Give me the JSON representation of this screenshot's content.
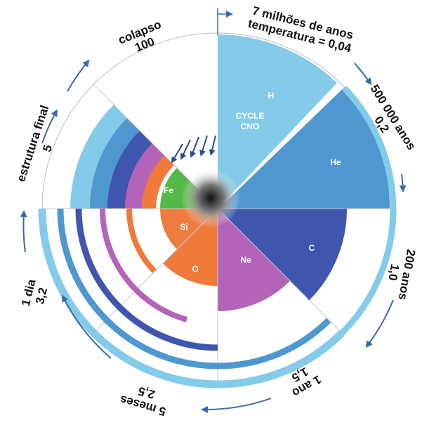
{
  "diagram": {
    "center_text": {
      "line1": "CYCLE",
      "line2": "CNO"
    },
    "elements": {
      "h": "H",
      "he": "He",
      "c": "C",
      "ne": "Ne",
      "o": "O",
      "si": "Si",
      "fe": "Fe"
    },
    "stages": {
      "start_line1": "7 milhões de anos",
      "start_line2": "temperatura = 0,04",
      "helium_time": "500 000 anos",
      "helium_temp": "0,2",
      "carbon_time": "200 anos",
      "carbon_temp": "1,0",
      "neon_time": "1 ano",
      "neon_temp": "1,5",
      "oxygen_time": "5 meses",
      "oxygen_temp": "2,5",
      "silicon_time": "1 dia",
      "silicon_temp": "3,2",
      "final_label": "estrutura final",
      "final_temp": "5",
      "collapse_label": "colapso",
      "collapse_temp": "100"
    },
    "colors": {
      "hydrogen": "#84cbe9",
      "helium": "#4f98cf",
      "carbon": "#4056ae",
      "neon": "#b364b8",
      "oxygen": "#ef7a3a",
      "silicon": "#ee7c3e",
      "iron": "#55b848",
      "arrows": "#3a6aaa",
      "core_arrows": "#2a4a8a"
    }
  }
}
